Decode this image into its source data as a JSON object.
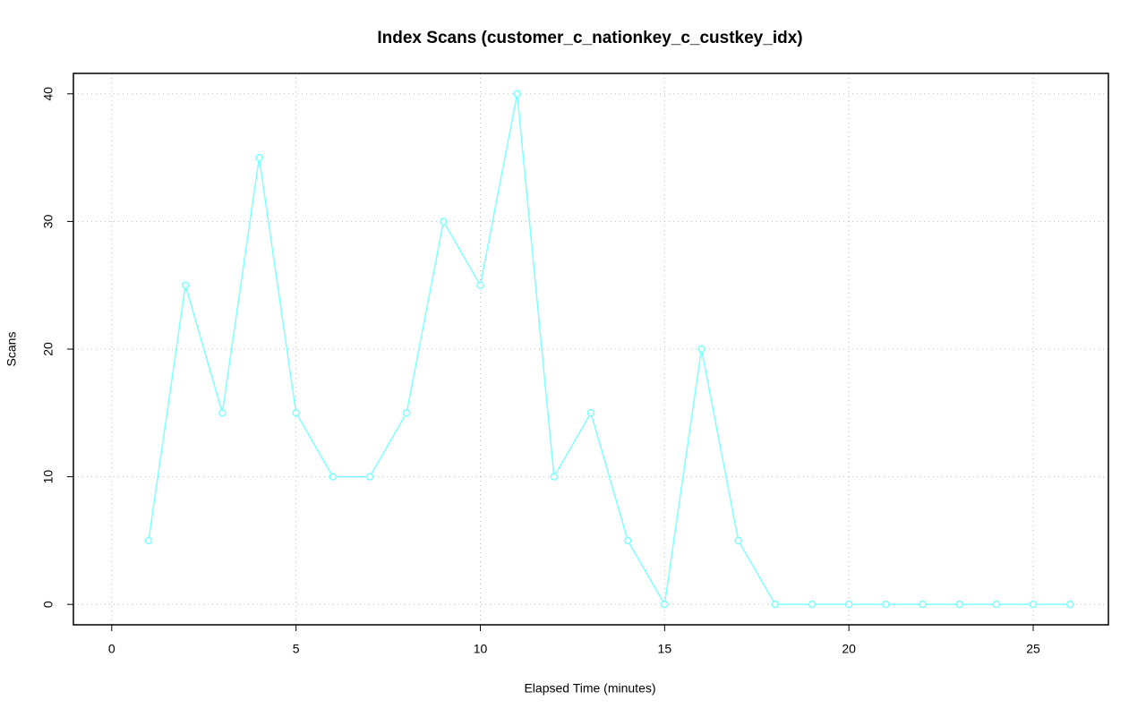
{
  "chart_data": {
    "type": "line",
    "title": "Index Scans (customer_c_nationkey_c_custkey_idx)",
    "x_label": "Elapsed Time (minutes)",
    "y_label": "Scans",
    "x": [
      1,
      2,
      3,
      4,
      5,
      6,
      7,
      8,
      9,
      10,
      11,
      12,
      13,
      14,
      15,
      16,
      17,
      18,
      19,
      20,
      21,
      22,
      23,
      24,
      25,
      26
    ],
    "series": [
      {
        "color": "#80ffff",
        "values": [
          5,
          25,
          15,
          35,
          15,
          10,
          10,
          15,
          30,
          25,
          40,
          10,
          15,
          5,
          0,
          20,
          5,
          0,
          0,
          0,
          0,
          0,
          0,
          0,
          0,
          0
        ]
      }
    ],
    "xlim": [
      -1.04,
      27.04
    ],
    "xticks": [
      0,
      5,
      10,
      15,
      20,
      25
    ],
    "ylim": [
      -1.6,
      41.6
    ],
    "yticks": [
      0,
      10,
      20,
      30,
      40
    ],
    "grid": true
  }
}
